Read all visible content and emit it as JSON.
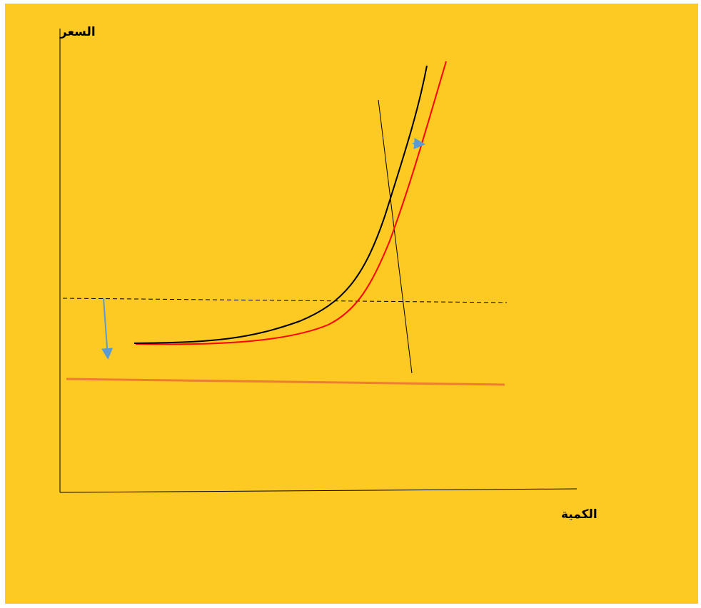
{
  "axes": {
    "y_label": "السعر",
    "x_label": "الكمية"
  }
}
